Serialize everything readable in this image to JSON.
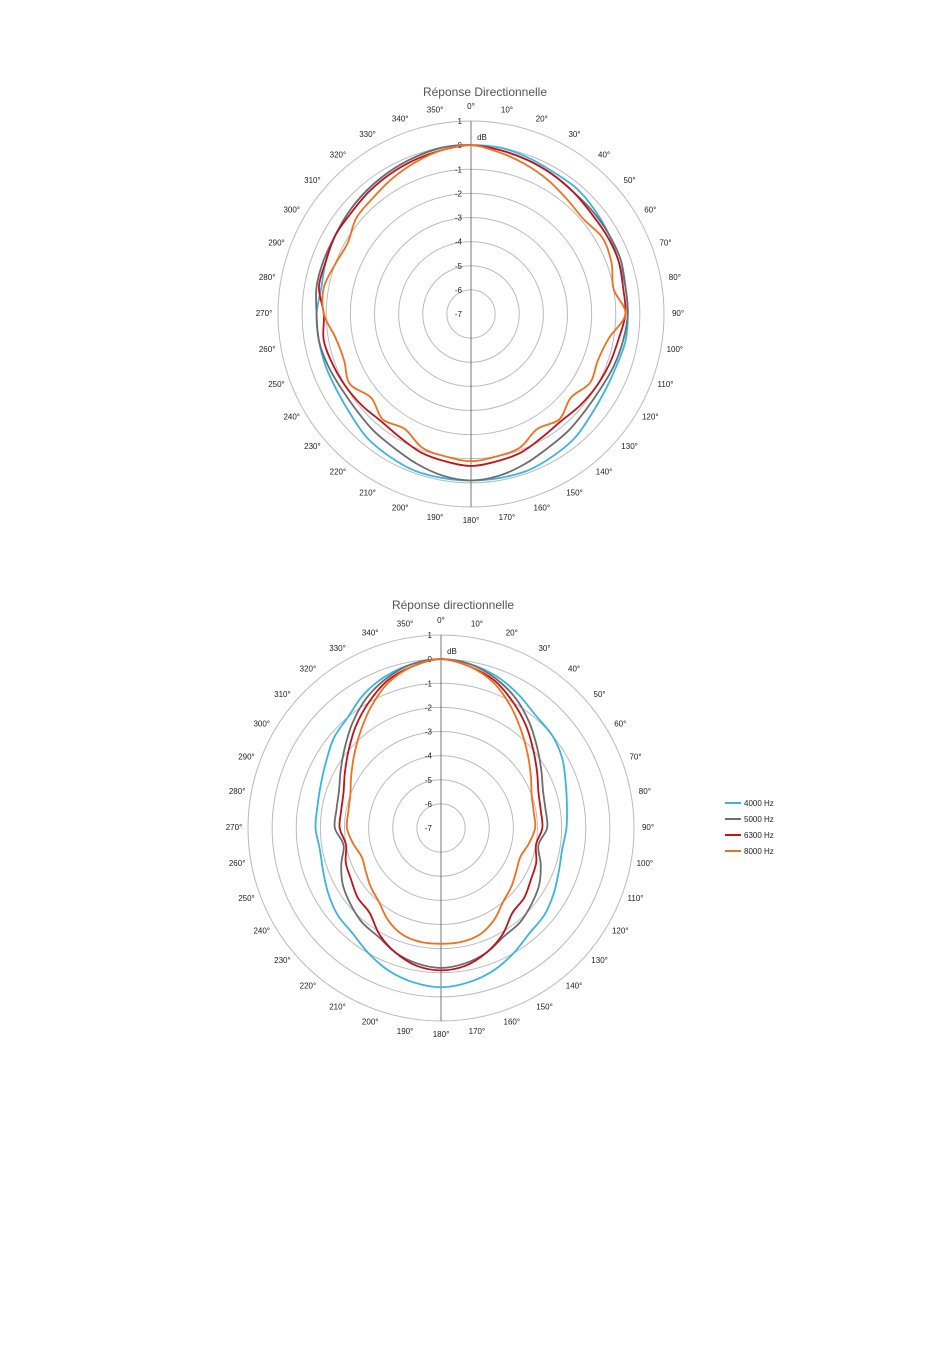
{
  "chart_data": [
    {
      "type": "polar",
      "title": "Réponse Directionnelle",
      "axis_label": "dB",
      "categories": [
        "0°",
        "10°",
        "20°",
        "30°",
        "40°",
        "50°",
        "60°",
        "70°",
        "80°",
        "90°",
        "100°",
        "110°",
        "120°",
        "130°",
        "140°",
        "150°",
        "160°",
        "170°",
        "180°",
        "190°",
        "200°",
        "210°",
        "220°",
        "230°",
        "240°",
        "250°",
        "260°",
        "270°",
        "280°",
        "290°",
        "300°",
        "310°",
        "320°",
        "330°",
        "340°",
        "350°"
      ],
      "rlim": [
        -7,
        1
      ],
      "rticks": [
        -7,
        -6,
        -5,
        -4,
        -3,
        -2,
        -1,
        0,
        1
      ],
      "grid": true,
      "series": [
        {
          "color": "#3bb3e4",
          "values": [
            0,
            0,
            -0.1,
            -0.2,
            -0.2,
            -0.3,
            -0.4,
            -0.5,
            -0.5,
            -0.5,
            -0.5,
            -0.6,
            -0.6,
            -0.5,
            -0.3,
            -0.2,
            -0.1,
            -0.1,
            -0.1,
            -0.1,
            -0.1,
            -0.2,
            -0.3,
            -0.5,
            -0.6,
            -0.6,
            -0.6,
            -0.6,
            -0.7,
            -0.6,
            -0.5,
            -0.4,
            -0.3,
            -0.2,
            -0.1,
            0
          ]
        },
        {
          "color": "#6d6d6d",
          "values": [
            0,
            -0.1,
            -0.2,
            -0.3,
            -0.4,
            -0.4,
            -0.4,
            -0.4,
            -0.5,
            -0.5,
            -0.6,
            -0.7,
            -0.8,
            -0.8,
            -0.7,
            -0.6,
            -0.4,
            -0.2,
            -0.1,
            -0.2,
            -0.4,
            -0.6,
            -0.7,
            -0.8,
            -0.8,
            -0.7,
            -0.6,
            -0.6,
            -0.5,
            -0.5,
            -0.5,
            -0.4,
            -0.3,
            -0.2,
            -0.1,
            0
          ]
        },
        {
          "color": "#c0121b",
          "values": [
            0,
            -0.1,
            -0.2,
            -0.3,
            -0.4,
            -0.5,
            -0.5,
            -0.5,
            -0.6,
            -0.6,
            -0.8,
            -0.9,
            -1.0,
            -1.1,
            -1.2,
            -1.1,
            -0.9,
            -0.8,
            -0.7,
            -0.8,
            -0.9,
            -1.1,
            -1.2,
            -1.1,
            -1.0,
            -0.9,
            -0.8,
            -0.9,
            -0.6,
            -0.6,
            -0.5,
            -0.5,
            -0.4,
            -0.3,
            -0.2,
            -0.1
          ]
        },
        {
          "color": "#f07020",
          "values": [
            0,
            -0.2,
            -0.4,
            -0.6,
            -0.8,
            -0.9,
            -0.7,
            -0.8,
            -1.0,
            -0.6,
            -1.2,
            -1.4,
            -1.3,
            -1.6,
            -1.3,
            -1.5,
            -1.1,
            -1.0,
            -0.9,
            -1.0,
            -1.1,
            -1.5,
            -1.3,
            -1.6,
            -1.2,
            -1.4,
            -1.3,
            -0.9,
            -0.8,
            -1.0,
            -1.1,
            -0.8,
            -0.7,
            -0.5,
            -0.3,
            -0.1
          ]
        }
      ]
    },
    {
      "type": "polar",
      "title": "Réponse directionnelle",
      "axis_label": "dB",
      "categories": [
        "0°",
        "10°",
        "20°",
        "30°",
        "40°",
        "50°",
        "60°",
        "70°",
        "80°",
        "90°",
        "100°",
        "110°",
        "120°",
        "130°",
        "140°",
        "150°",
        "160°",
        "170°",
        "180°",
        "190°",
        "200°",
        "210°",
        "220°",
        "230°",
        "240°",
        "250°",
        "260°",
        "270°",
        "280°",
        "290°",
        "300°",
        "310°",
        "320°",
        "330°",
        "340°",
        "350°"
      ],
      "rlim": [
        -7,
        1
      ],
      "rticks": [
        -7,
        -6,
        -5,
        -4,
        -3,
        -2,
        -1,
        0,
        1
      ],
      "grid": true,
      "legend": "right",
      "series": [
        {
          "name": "4000 Hz",
          "color": "#3bb3e4",
          "values": [
            0,
            -0.1,
            -0.3,
            -0.6,
            -0.9,
            -1.0,
            -1.2,
            -1.5,
            -1.7,
            -1.8,
            -1.9,
            -1.8,
            -1.6,
            -1.4,
            -1.3,
            -1.0,
            -0.7,
            -0.5,
            -0.4,
            -0.5,
            -0.7,
            -1.0,
            -1.3,
            -1.4,
            -1.6,
            -1.8,
            -1.9,
            -1.8,
            -1.8,
            -1.7,
            -1.5,
            -1.2,
            -1.0,
            -0.6,
            -0.3,
            -0.1
          ]
        },
        {
          "name": "5000 Hz",
          "color": "#6d6d6d",
          "values": [
            0,
            -0.1,
            -0.4,
            -0.8,
            -1.3,
            -1.8,
            -2.2,
            -2.5,
            -2.6,
            -2.6,
            -2.9,
            -2.6,
            -2.3,
            -2.1,
            -1.9,
            -1.8,
            -1.5,
            -1.3,
            -1.2,
            -1.3,
            -1.5,
            -1.8,
            -1.9,
            -2.1,
            -2.3,
            -2.6,
            -2.9,
            -2.6,
            -2.6,
            -2.5,
            -2.2,
            -1.8,
            -1.3,
            -0.8,
            -0.4,
            -0.1
          ]
        },
        {
          "name": "6300 Hz",
          "color": "#c0121b",
          "values": [
            0,
            -0.2,
            -0.5,
            -1.0,
            -1.5,
            -2.0,
            -2.4,
            -2.7,
            -2.8,
            -2.8,
            -3.0,
            -2.8,
            -2.7,
            -2.5,
            -2.4,
            -1.9,
            -1.5,
            -1.2,
            -1.1,
            -1.2,
            -1.5,
            -1.9,
            -2.4,
            -2.5,
            -2.7,
            -2.8,
            -3.0,
            -2.8,
            -2.8,
            -2.7,
            -2.4,
            -2.0,
            -1.5,
            -1.0,
            -0.5,
            -0.2
          ]
        },
        {
          "name": "8000 Hz",
          "color": "#f07020",
          "values": [
            0,
            -0.2,
            -0.6,
            -1.2,
            -1.8,
            -2.3,
            -2.7,
            -3.0,
            -3.1,
            -3.1,
            -3.3,
            -3.5,
            -3.4,
            -3.2,
            -3.0,
            -2.6,
            -2.3,
            -2.2,
            -2.2,
            -2.2,
            -2.3,
            -2.6,
            -3.0,
            -3.2,
            -3.4,
            -3.5,
            -3.3,
            -3.1,
            -3.1,
            -3.0,
            -2.7,
            -2.3,
            -1.8,
            -1.2,
            -0.6,
            -0.2
          ]
        }
      ]
    }
  ]
}
